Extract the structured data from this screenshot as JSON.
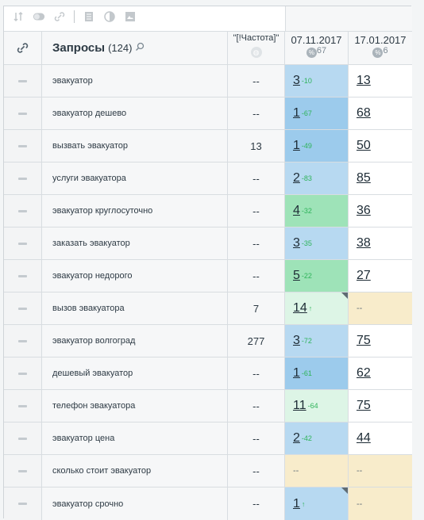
{
  "colors": {
    "blue": "#b7d9f1",
    "blue_strong": "#9ccbec",
    "green": "#9ee3b8",
    "light_green": "#ddf5e6",
    "beige": "#f8eccb",
    "white": "#ffffff"
  },
  "toolbar": {
    "icons": [
      "sort-icon",
      "toggle-icon",
      "link-icon",
      "document-icon",
      "contrast-icon",
      "image-icon"
    ]
  },
  "header": {
    "title": "Запросы",
    "count": "(124)",
    "freq": "\"[!Частота]\"",
    "date1": "07.11.2017",
    "date1_pct": "67",
    "date2": "17.01.2017",
    "date2_pct": "6"
  },
  "rows": [
    {
      "query": "эвакуатор",
      "freq": "--",
      "p1": "3",
      "c1": "-10",
      "bg1": "blue",
      "p2": "13",
      "bg2": "white"
    },
    {
      "query": "эвакуатор дешево",
      "freq": "--",
      "p1": "1",
      "c1": "-67",
      "bg1": "blue_strong",
      "p2": "68",
      "bg2": "white"
    },
    {
      "query": "вызвать эвакуатор",
      "freq": "13",
      "p1": "1",
      "c1": "-49",
      "bg1": "blue_strong",
      "p2": "50",
      "bg2": "white"
    },
    {
      "query": "услуги эвакуатора",
      "freq": "--",
      "p1": "2",
      "c1": "-83",
      "bg1": "blue",
      "p2": "85",
      "bg2": "white"
    },
    {
      "query": "эвакуатор круглосуточно",
      "freq": "--",
      "p1": "4",
      "c1": "-32",
      "bg1": "green",
      "p2": "36",
      "bg2": "white"
    },
    {
      "query": "заказать эвакуатор",
      "freq": "--",
      "p1": "3",
      "c1": "-35",
      "bg1": "blue",
      "p2": "38",
      "bg2": "white"
    },
    {
      "query": "эвакуатор недорого",
      "freq": "--",
      "p1": "5",
      "c1": "-22",
      "bg1": "green",
      "p2": "27",
      "bg2": "white"
    },
    {
      "query": "вызов эвакуатора",
      "freq": "7",
      "p1": "14",
      "c1": "↑",
      "bg1": "light_green",
      "p2": "--",
      "bg2": "beige",
      "corner": true
    },
    {
      "query": "эвакуатор волгоград",
      "freq": "277",
      "p1": "3",
      "c1": "-72",
      "bg1": "blue",
      "p2": "75",
      "bg2": "white"
    },
    {
      "query": "дешевый эвакуатор",
      "freq": "--",
      "p1": "1",
      "c1": "-61",
      "bg1": "blue_strong",
      "p2": "62",
      "bg2": "white"
    },
    {
      "query": "телефон эвакуатора",
      "freq": "--",
      "p1": "11",
      "c1": "-64",
      "bg1": "light_green",
      "p2": "75",
      "bg2": "white"
    },
    {
      "query": "эвакуатор цена",
      "freq": "--",
      "p1": "2",
      "c1": "-42",
      "bg1": "blue",
      "p2": "44",
      "bg2": "white"
    },
    {
      "query": "сколько стоит эвакуатор",
      "freq": "--",
      "p1": "--",
      "c1": "",
      "bg1": "beige",
      "p2": "--",
      "bg2": "beige"
    },
    {
      "query": "эвакуатор срочно",
      "freq": "--",
      "p1": "1",
      "c1": "↑",
      "bg1": "blue",
      "p2": "--",
      "bg2": "beige",
      "corner": true
    }
  ]
}
